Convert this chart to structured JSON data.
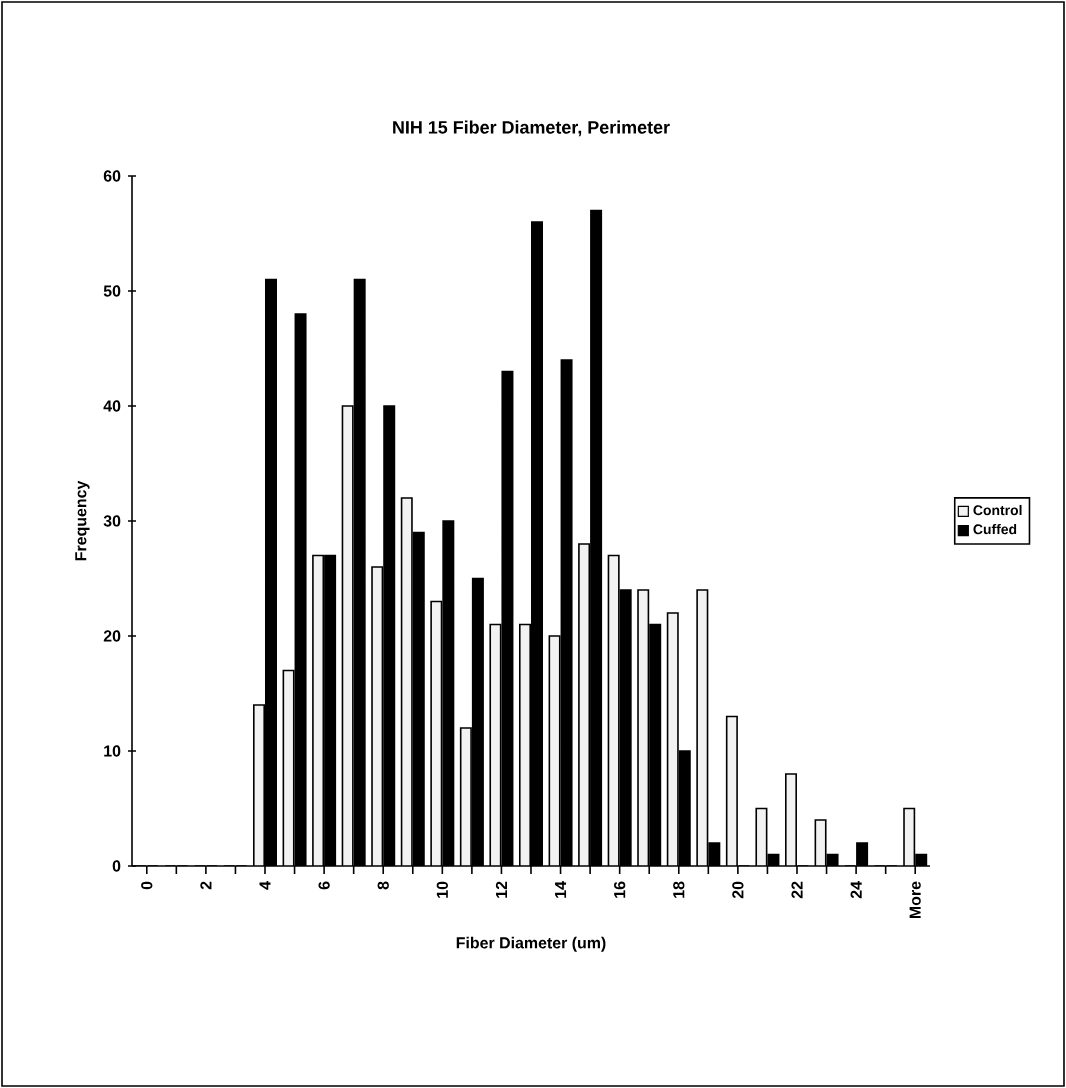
{
  "chart_data": {
    "type": "bar",
    "title": "NIH 15 Fiber Diameter, Perimeter",
    "xlabel": "Fiber Diameter (um)",
    "ylabel": "Frequency",
    "categories": [
      "0",
      null,
      "2",
      null,
      "4",
      null,
      "6",
      null,
      "8",
      null,
      "10",
      null,
      "12",
      null,
      "14",
      null,
      "16",
      null,
      "18",
      null,
      "20",
      null,
      "22",
      null,
      "24",
      null,
      "More"
    ],
    "series": [
      {
        "name": "Control",
        "color": "#f2f2f2",
        "values": [
          0,
          0,
          0,
          0,
          14,
          17,
          27,
          40,
          26,
          32,
          23,
          12,
          21,
          21,
          20,
          28,
          27,
          24,
          22,
          24,
          13,
          5,
          8,
          4,
          0,
          0,
          5
        ]
      },
      {
        "name": "Cuffed",
        "color": "#000000",
        "values": [
          0,
          0,
          0,
          0,
          51,
          48,
          27,
          51,
          40,
          29,
          30,
          25,
          43,
          56,
          44,
          57,
          24,
          21,
          10,
          2,
          0,
          1,
          0,
          1,
          2,
          0,
          1
        ]
      }
    ],
    "ylim": [
      0,
      60
    ],
    "yticks": [
      0,
      10,
      20,
      30,
      40,
      50,
      60
    ],
    "legend": "right"
  }
}
